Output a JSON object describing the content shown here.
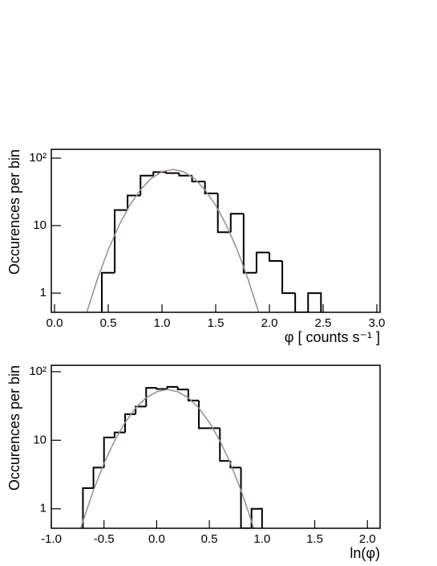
{
  "chart_data": [
    {
      "type": "histogram",
      "x_label": "φ [ counts s⁻¹ ]",
      "y_label": "Occurences per bin",
      "color": "#000000",
      "log_y": true,
      "bins": [
        0.44,
        0.56,
        0.68,
        0.8,
        0.92,
        1.04,
        1.16,
        1.28,
        1.4,
        1.52,
        1.64,
        1.76,
        1.88,
        2.0,
        2.12,
        2.24,
        2.36,
        2.48
      ],
      "values": [
        2,
        17,
        28,
        55,
        62,
        60,
        55,
        45,
        30,
        8,
        15,
        2,
        4,
        3,
        1,
        0,
        1
      ],
      "curve": {
        "color": "#a08890",
        "x": [
          0.3,
          0.4,
          0.5,
          0.6,
          0.7,
          0.8,
          0.9,
          1.0,
          1.1,
          1.2,
          1.3,
          1.4,
          1.5,
          1.6,
          1.7,
          1.8,
          1.9
        ],
        "values": [
          0.52,
          1.63,
          4.4,
          10.1,
          20,
          34,
          50,
          63,
          68,
          63,
          50,
          34,
          20,
          10.1,
          4.4,
          1.63,
          0.52
        ]
      },
      "xlim": [
        -0.03,
        3.03
      ],
      "ylim": [
        0.52,
        135
      ],
      "xticks": [
        {
          "value": 0,
          "label": "0.0"
        },
        {
          "value": 0.5,
          "label": "0.5"
        },
        {
          "value": 1,
          "label": "1.0"
        },
        {
          "value": 1.5,
          "label": "1.5"
        },
        {
          "value": 2,
          "label": "2.0"
        },
        {
          "value": 2.5,
          "label": "2.5"
        },
        {
          "value": 3,
          "label": "3.0"
        }
      ],
      "yticks": [
        1,
        10,
        {
          "value": 100,
          "label": "10²"
        }
      ]
    },
    {
      "type": "histogram",
      "x_label": "ln(φ)",
      "y_label": "Occurences per bin",
      "color": "#000000",
      "log_y": true,
      "bins": [
        -0.7,
        -0.6,
        -0.5,
        -0.4,
        -0.3,
        -0.2,
        -0.1,
        0,
        0.1,
        0.2,
        0.3,
        0.4,
        0.5,
        0.6,
        0.7,
        0.8,
        0.9,
        1.0
      ],
      "values": [
        2,
        4,
        11,
        13,
        24,
        31,
        58,
        56,
        60,
        55,
        38,
        15,
        15,
        5,
        4,
        0,
        1
      ],
      "curve": {
        "color": "#a08890",
        "x": [
          -0.72,
          -0.7,
          -0.6,
          -0.5,
          -0.4,
          -0.3,
          -0.2,
          -0.1,
          0,
          0.1,
          0.2,
          0.3,
          0.4,
          0.5,
          0.6,
          0.7,
          0.8,
          0.9,
          0.92
        ],
        "values": [
          0.52,
          0.66,
          1.86,
          4.6,
          9.8,
          18.2,
          29.5,
          41.7,
          51,
          55,
          51,
          41.7,
          29.5,
          18.2,
          9.8,
          4.6,
          1.86,
          0.66,
          0.52
        ]
      },
      "xlim": [
        -1.0,
        2.12
      ],
      "ylim": [
        0.52,
        124
      ],
      "xticks": [
        {
          "value": -1,
          "label": "-1.0"
        },
        {
          "value": -0.5,
          "label": "-0.5"
        },
        {
          "value": 0,
          "label": "0.0"
        },
        {
          "value": 0.5,
          "label": "0.5"
        },
        {
          "value": 1,
          "label": "1.0"
        },
        {
          "value": 1.5,
          "label": "1.5"
        },
        {
          "value": 2,
          "label": "2.0"
        }
      ],
      "yticks": [
        1,
        10,
        {
          "value": 100,
          "label": "10²"
        }
      ]
    }
  ]
}
